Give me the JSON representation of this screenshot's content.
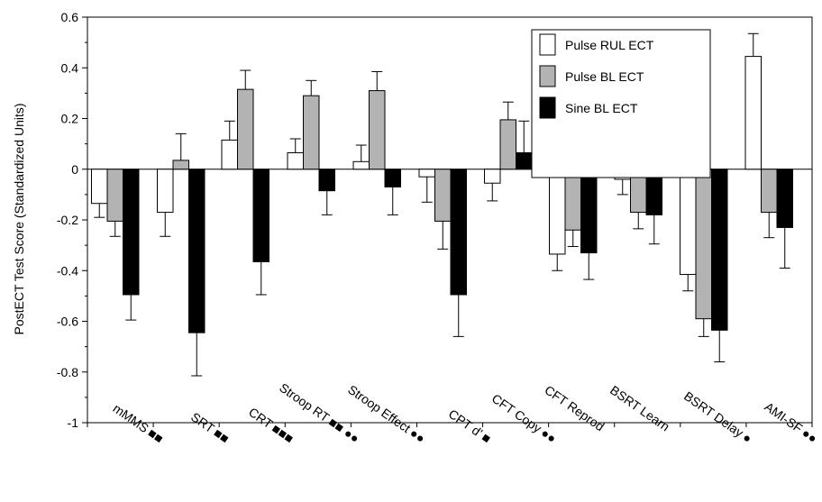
{
  "chart_data": {
    "type": "bar",
    "title": "",
    "xlabel": "",
    "ylabel": "PostECT Test Score (Standardized Units)",
    "ylim": [
      -1,
      0.6
    ],
    "yticks": [
      0.6,
      0.4,
      0.2,
      0,
      -0.2,
      -0.4,
      -0.6,
      -0.8,
      -1
    ],
    "ytick_labels": [
      "0.6",
      "0.4",
      "0.2",
      "0",
      "-0.2",
      "-0.4",
      "-0.6",
      "-0.8",
      "-1"
    ],
    "grid": false,
    "legend_position": "top-right",
    "categories": [
      "mMMS",
      "SRT",
      "CRT",
      "Stroop RT",
      "Stroop Effect",
      "CPT d'",
      "CFT Copy",
      "CFT Reprod",
      "BSRT Learn",
      "BSRT Delay",
      "AMI-SF"
    ],
    "significance_marks": [
      "■■",
      "■■",
      "■■■",
      "■■ ●●",
      "●●",
      "■",
      "●●",
      "",
      "",
      "●",
      "●●"
    ],
    "series": [
      {
        "name": "Pulse RUL ECT",
        "color": "#ffffff",
        "values": [
          -0.135,
          -0.17,
          0.115,
          0.065,
          0.03,
          -0.03,
          -0.055,
          -0.335,
          -0.04,
          -0.415,
          0.445
        ],
        "errors": [
          0.055,
          0.095,
          0.075,
          0.055,
          0.065,
          0.1,
          0.07,
          0.065,
          0.06,
          0.065,
          0.09
        ]
      },
      {
        "name": "Pulse BL ECT",
        "color": "#b3b3b3",
        "values": [
          -0.205,
          0.035,
          0.315,
          0.29,
          0.31,
          -0.205,
          0.195,
          -0.24,
          -0.17,
          -0.59,
          -0.17
        ],
        "errors": [
          0.06,
          0.105,
          0.075,
          0.06,
          0.075,
          0.11,
          0.07,
          0.065,
          0.065,
          0.07,
          0.1
        ]
      },
      {
        "name": "Sine BL ECT",
        "color": "#000000",
        "values": [
          -0.495,
          -0.645,
          -0.365,
          -0.085,
          -0.07,
          -0.495,
          0.065,
          -0.33,
          -0.18,
          -0.635,
          -0.23
        ],
        "errors": [
          0.1,
          0.17,
          0.13,
          0.095,
          0.11,
          0.165,
          0.125,
          0.105,
          0.115,
          0.125,
          0.16
        ]
      }
    ]
  }
}
